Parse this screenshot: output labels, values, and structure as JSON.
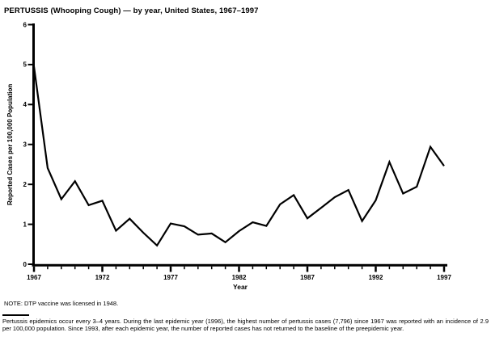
{
  "page": {
    "background_color": "#ffffff",
    "foreground_color": "#000000"
  },
  "chart_data": {
    "type": "line",
    "title": "PERTUSSIS (Whooping Cough) — by year, United States, 1967–1997",
    "xlabel": "Year",
    "ylabel": "Reported Cases per 100,000 Population",
    "x": [
      1967,
      1968,
      1969,
      1970,
      1971,
      1972,
      1973,
      1974,
      1975,
      1976,
      1977,
      1978,
      1979,
      1980,
      1981,
      1982,
      1983,
      1984,
      1985,
      1986,
      1987,
      1988,
      1989,
      1990,
      1991,
      1992,
      1993,
      1994,
      1995,
      1996,
      1997
    ],
    "values": [
      4.95,
      2.41,
      1.63,
      2.08,
      1.48,
      1.59,
      0.84,
      1.14,
      0.79,
      0.47,
      1.02,
      0.95,
      0.74,
      0.77,
      0.55,
      0.83,
      1.05,
      0.96,
      1.5,
      1.73,
      1.15,
      1.41,
      1.68,
      1.86,
      1.08,
      1.6,
      2.56,
      1.77,
      1.94,
      2.94,
      2.46
    ],
    "ylim": [
      0,
      6
    ],
    "xlim": [
      1967,
      1997
    ],
    "y_ticks": [
      0,
      1,
      2,
      3,
      4,
      5,
      6
    ],
    "x_major_ticks": [
      1967,
      1972,
      1977,
      1982,
      1987,
      1992,
      1997
    ],
    "x_minor_tick_interval": 1,
    "grid": "off",
    "legend": "none",
    "line_color": "#000000"
  },
  "notes": {
    "note": "NOTE: DTP vaccine was licensed in 1948.",
    "footnote": "Pertussis epidemics occur every 3–4 years. During the last epidemic year (1996), the highest number of pertussis cases (7,796) since 1967 was reported with an incidence of 2.9 per 100,000 population. Since 1993, after each epidemic year, the number of reported cases has not returned to the baseline of the preepidemic year."
  }
}
